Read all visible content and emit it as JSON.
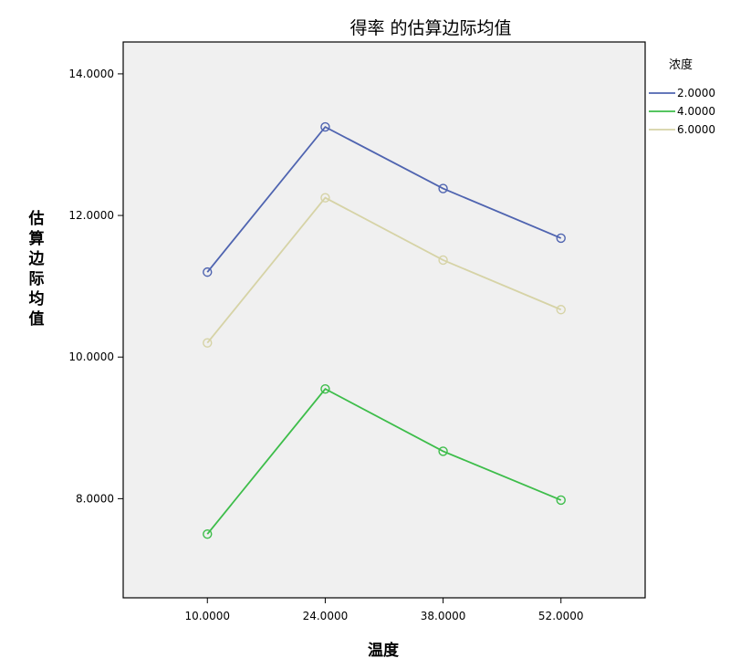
{
  "chart_data": {
    "type": "line",
    "title": "得率 的估算边际均值",
    "xlabel": "温度",
    "ylabel": "估算边际均值",
    "categories": [
      "10.0000",
      "24.0000",
      "38.0000",
      "52.0000"
    ],
    "x": [
      10,
      24,
      38,
      52
    ],
    "xlim": [
      0,
      62
    ],
    "ylim": [
      6.6,
      14.45
    ],
    "yticks": [
      8,
      10,
      12,
      14
    ],
    "ytick_labels": [
      "8.0000",
      "10.0000",
      "12.0000",
      "14.0000"
    ],
    "grid": false,
    "legend": {
      "title": "浓度",
      "position": "right-top"
    },
    "series": [
      {
        "name": "2.0000",
        "color": "#4f64b0",
        "values": [
          11.2,
          13.25,
          12.38,
          11.68
        ]
      },
      {
        "name": "4.0000",
        "color": "#3dbd4a",
        "values": [
          7.5,
          9.55,
          8.67,
          7.98
        ]
      },
      {
        "name": "6.0000",
        "color": "#d6d3a6",
        "values": [
          10.2,
          12.25,
          11.37,
          10.67
        ]
      }
    ]
  },
  "colors": {
    "plot_background": "#f0f0f0",
    "axis": "#000000"
  }
}
